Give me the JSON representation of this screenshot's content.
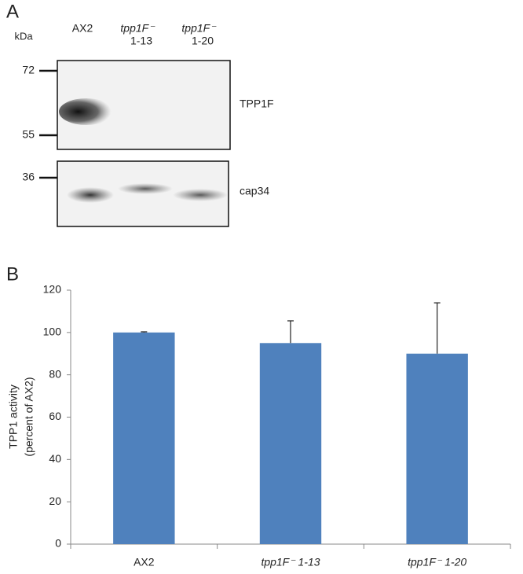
{
  "panel_a": {
    "label": "A",
    "unit": "kDa",
    "lanes": [
      {
        "name": "AX2"
      },
      {
        "name": "tpp1F⁻",
        "clone": "1-13"
      },
      {
        "name": "tpp1F⁻",
        "clone": "1-20"
      }
    ],
    "markers": [
      72,
      55,
      36
    ],
    "blots": [
      "TPP1F",
      "cap34"
    ]
  },
  "chart_data": {
    "type": "bar",
    "panel_label": "B",
    "ylabel": [
      "TPP1 activity",
      "(percent of AX2)"
    ],
    "categories": [
      "AX2",
      "tpp1F⁻ 1-13",
      "tpp1F⁻ 1-20"
    ],
    "values": [
      100,
      95,
      90
    ],
    "errors": [
      0.3,
      10.5,
      24
    ],
    "color": "#4f81bd",
    "ylim": [
      0,
      120
    ],
    "yticks": [
      0,
      20,
      40,
      60,
      80,
      100,
      120
    ],
    "grid": false
  }
}
